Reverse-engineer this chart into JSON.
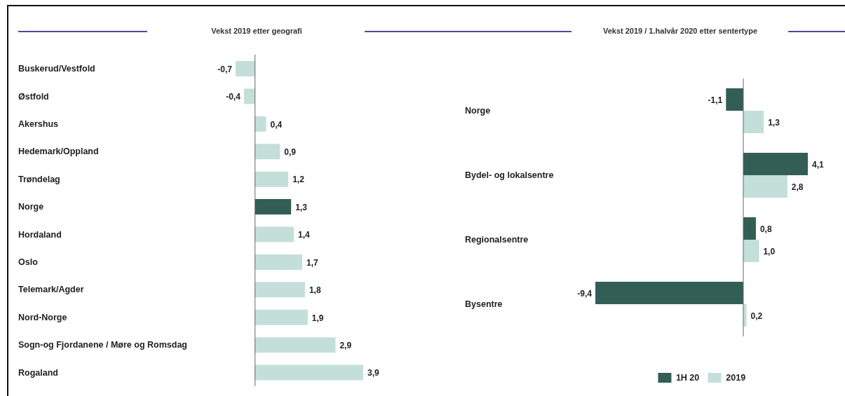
{
  "chart_data": [
    {
      "type": "bar",
      "orientation": "horizontal",
      "title": "Vekst 2019 etter geografi",
      "categories": [
        "Buskerud/Vestfold",
        "Østfold",
        "Akershus",
        "Hedemark/Oppland",
        "Trøndelag",
        "Norge",
        "Hordaland",
        "Oslo",
        "Telemark/Agder",
        "Nord-Norge",
        "Sogn-og Fjordanene / Møre og Romsdag",
        "Rogaland"
      ],
      "values": [
        -0.7,
        -0.4,
        0.4,
        0.9,
        1.2,
        1.3,
        1.4,
        1.7,
        1.8,
        1.9,
        2.9,
        3.9
      ],
      "colors": [
        "#c4dfd9",
        "#c4dfd9",
        "#c4dfd9",
        "#c4dfd9",
        "#c4dfd9",
        "#335e56",
        "#c4dfd9",
        "#c4dfd9",
        "#c4dfd9",
        "#c4dfd9",
        "#c4dfd9",
        "#c4dfd9"
      ],
      "value_labels": [
        "-0,7",
        "-0,4",
        "0,4",
        "0,9",
        "1,2",
        "1,3",
        "1,4",
        "1,7",
        "1,8",
        "1,9",
        "2,9",
        "3,9"
      ]
    },
    {
      "type": "bar",
      "orientation": "horizontal",
      "title": "Vekst 2019 / 1.halvår 2020 etter sentertype",
      "categories": [
        "Norge",
        "Bydel- og lokalsentre",
        "Regionalsentre",
        "Bysentre"
      ],
      "series": [
        {
          "name": "1H 20",
          "color": "#335e56",
          "values": [
            -1.1,
            4.1,
            0.8,
            -9.4
          ],
          "value_labels": [
            "-1,1",
            "4,1",
            "0,8",
            "-9,4"
          ]
        },
        {
          "name": "2019",
          "color": "#c4dfd9",
          "values": [
            1.3,
            2.8,
            1.0,
            0.2
          ],
          "value_labels": [
            "1,3",
            "2,8",
            "1,0",
            "0,2"
          ]
        }
      ],
      "legend": "bottom"
    }
  ]
}
